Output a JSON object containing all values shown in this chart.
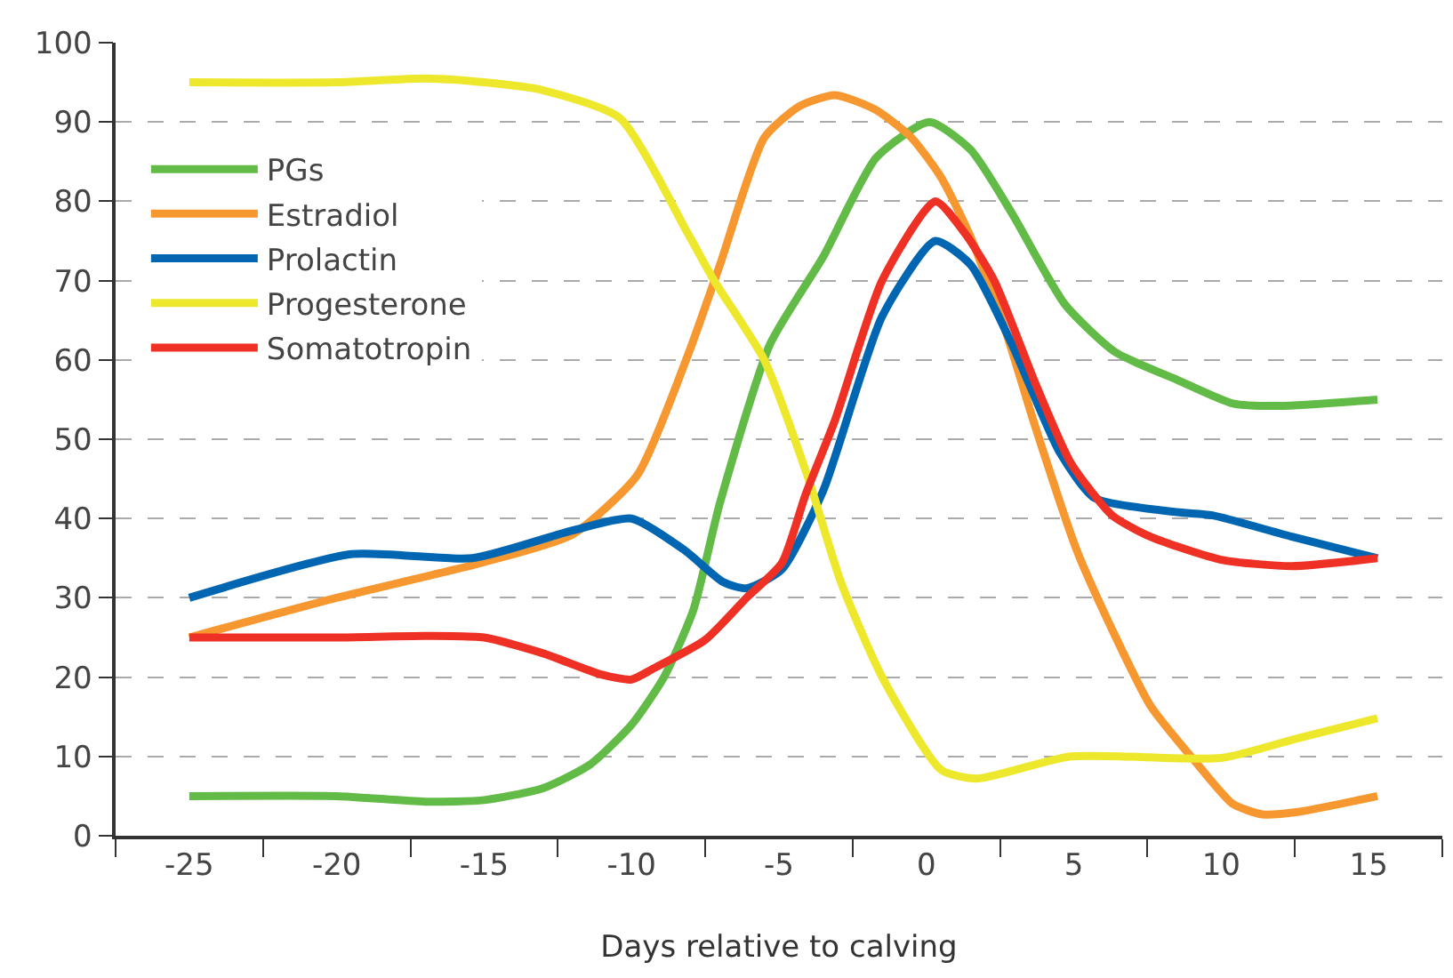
{
  "chart_data": {
    "type": "line",
    "xlabel": "Days relative to calving",
    "xlim": [
      -27.5,
      17.5
    ],
    "ylim": [
      0,
      100
    ],
    "xticks": [
      {
        "value": -27.5,
        "label": null
      },
      -25,
      {
        "value": -22.5,
        "label": null
      },
      -20,
      {
        "value": -17.5,
        "label": null
      },
      -15,
      {
        "value": -12.5,
        "label": null
      },
      -10,
      {
        "value": -7.5,
        "label": null
      },
      -5,
      {
        "value": -2.5,
        "label": null
      },
      0,
      {
        "value": 2.5,
        "label": null
      },
      5,
      {
        "value": 7.5,
        "label": null
      },
      10,
      {
        "value": 12.5,
        "label": null
      },
      15,
      {
        "value": 17.5,
        "label": null
      }
    ],
    "yticks": [
      0,
      10,
      20,
      30,
      40,
      50,
      60,
      70,
      80,
      90,
      100
    ],
    "grid": "y",
    "legend": "top left",
    "line_style": "solid",
    "marker": "none",
    "series": [
      {
        "name": "PGs",
        "color": "#62bb46",
        "x": [
          -25,
          -20,
          -17,
          -15,
          -13,
          -11.4,
          -10,
          -8.9,
          -7.9,
          -7.0,
          -5.3,
          -3.5,
          -1.7,
          0.1,
          1.5,
          2.9,
          4.7,
          6.4,
          8.5,
          10.4,
          12,
          15.3
        ],
        "values": [
          5,
          5,
          4.3,
          4.5,
          6,
          9,
          14,
          20,
          28.5,
          42,
          62,
          73,
          85.5,
          90,
          86.5,
          78.5,
          67,
          61,
          57.5,
          54.5,
          54.2,
          55
        ]
      },
      {
        "name": "Estradiol",
        "color": "#f7972f",
        "x": [
          -25,
          -20,
          -15,
          -12,
          -9.8,
          -8.1,
          -7.0,
          -5.5,
          -4.3,
          -3.1,
          -1.7,
          -0.5,
          0.5,
          1.5,
          2.7,
          3.7,
          5.1,
          6.3,
          7.6,
          9.2,
          10.4,
          11.4,
          12.6,
          15.3
        ],
        "values": [
          25,
          30,
          34.5,
          38,
          45.5,
          60.5,
          72,
          88,
          92,
          93.4,
          91.5,
          88,
          83,
          75.5,
          63.5,
          51.5,
          36,
          26,
          16.4,
          9,
          4,
          2.7,
          3,
          5
        ]
      },
      {
        "name": "Prolactin",
        "color": "#0066b2",
        "x": [
          -25,
          -19.5,
          -15.4,
          -12,
          -10,
          -8.2,
          -6.9,
          -6.1,
          -4.9,
          -3.5,
          -1.5,
          0.3,
          1.5,
          2.9,
          4.5,
          5.7,
          8.5,
          9.7,
          12.4,
          15.3
        ],
        "values": [
          30,
          35.5,
          35,
          38.5,
          40,
          36,
          32,
          31.2,
          33.6,
          43.5,
          65.5,
          75,
          72,
          62,
          48.5,
          42.6,
          40.8,
          40.4,
          37.7,
          35
        ]
      },
      {
        "name": "Progesterone",
        "color": "#ede82c",
        "x": [
          -25,
          -20,
          -17,
          -15,
          -13,
          -10.4,
          -8.1,
          -7.2,
          -5.5,
          -4,
          -2.9,
          -1.5,
          0.5,
          1.7,
          4.9,
          10,
          12.6,
          15.3
        ],
        "values": [
          95,
          95,
          95.5,
          95,
          94,
          90.5,
          76,
          70,
          60,
          45,
          32,
          20,
          8.3,
          7.2,
          10,
          9.8,
          12.3,
          14.8
        ]
      },
      {
        "name": "Somatotropin",
        "color": "#ee3124",
        "x": [
          -25,
          -20,
          -17,
          -15,
          -13,
          -11,
          -10,
          -9.3,
          -7.5,
          -6.1,
          -4.9,
          -4.1,
          -3.1,
          -1.5,
          0.3,
          1.3,
          2.3,
          3.7,
          4.9,
          6.3,
          7.6,
          10,
          12.4,
          15.3
        ],
        "values": [
          25,
          25,
          25.2,
          25,
          23,
          20.3,
          19.7,
          21,
          24.7,
          30,
          34.4,
          43,
          52.4,
          70,
          80,
          76,
          70,
          57,
          47,
          40.4,
          37.7,
          34.8,
          34,
          35
        ]
      }
    ]
  }
}
